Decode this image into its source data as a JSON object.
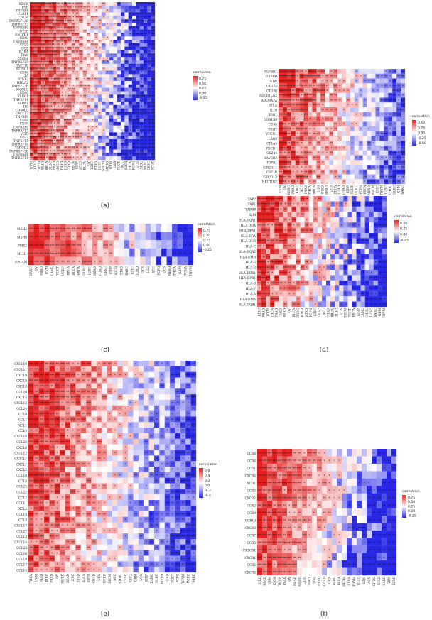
{
  "chart_data": [
    {
      "type": "heatmap",
      "panel_label": "(a)",
      "legend_title": "correlation",
      "legend_ticks": [
        "0.75",
        "0.50",
        "0.25",
        "0.00",
        "-0.25"
      ],
      "value_range": [
        -0.35,
        0.85
      ],
      "rows": [
        "KDCB",
        "PVR",
        "TNFSF4",
        "ULBP1",
        "CD276",
        "TNFRSF13C",
        "TNFRSF13",
        "TNFRSF8",
        "NT5E",
        "ENTPD1",
        "CD80",
        "TNFRSF4",
        "CD28",
        "ICOS",
        "IL2RA",
        "Tim6",
        "CXCR4",
        "TNFRSF25",
        "RAET1E",
        "STING1",
        "CD86",
        "LTA",
        "BTNL2",
        "HHLA2",
        "TNFSF13B",
        "ICOSLG",
        "CD40",
        "KLRC1",
        "TNFSF14",
        "KLRK1",
        "IL6",
        "CD40LG",
        "CXCL12",
        "TNFSF9",
        "CD48",
        "CD70",
        "TNFRSF9",
        "TNFRSF17",
        "VSIR",
        "CD27",
        "TNFSF15",
        "TNFRSF18",
        "TMIGD2",
        "TNFRSF13B",
        "TNFRSF4",
        "TNFRSF14"
      ],
      "cols": [
        "UVM",
        "KIRC",
        "THYM",
        "READ",
        "BRCA",
        "DLBC",
        "PRAD",
        "HNSC",
        "PAAD",
        "LUAD",
        "COAD",
        "ESCA",
        "KIRP",
        "UCEC",
        "BLCA",
        "OV",
        "LIHC",
        "STAD",
        "LUSC",
        "SKCM",
        "MESO",
        "GBM",
        "LGG",
        "TGCT",
        "ACC",
        "KICH",
        "THCA",
        "PCPG",
        "UCS",
        "CHOL",
        "SARC",
        "CESC",
        "TCGT"
      ]
    },
    {
      "type": "heatmap",
      "panel_label": "(b)",
      "legend_title": "correlation",
      "legend_ticks": [
        "0.50",
        "0.25",
        "0.00",
        "-0.25",
        "-0.50"
      ],
      "value_range": [
        -0.55,
        0.7
      ],
      "rows": [
        "TGFBR1",
        "IL10RB",
        "KDR",
        "CD274",
        "CD160",
        "PDCD1LG2",
        "ADORA2A",
        "BTLA",
        "IL10",
        "IDO1",
        "LGALS9",
        "CD96",
        "TIGIT",
        "VTCN1",
        "LAG3",
        "CTLA4",
        "PDCD1",
        "CD244",
        "HAVCR2",
        "TGFB1",
        "KIR2DL1",
        "CSF1R",
        "KIR2DL3",
        "NECTIN2"
      ],
      "cols": [
        "UVM",
        "OV",
        "HNSC",
        "PRAD",
        "KIRC",
        "ACC",
        "PAAD",
        "THCA",
        "BRCA",
        "LGG",
        "STAD",
        "READ",
        "UCS",
        "BLCA",
        "LUAD",
        "COAD",
        "KIRP",
        "TGCT",
        "UCEC",
        "PCPG",
        "ESCA",
        "MESO",
        "SKCM",
        "LIHC",
        "THYM",
        "LUSC",
        "CHOL",
        "DLBC",
        "GBM",
        "SARC"
      ]
    },
    {
      "type": "heatmap",
      "panel_label": "(c)",
      "legend_title": "correlation",
      "legend_ticks": [
        "0.75",
        "0.50",
        "0.25",
        "0.00",
        "-0.25"
      ],
      "value_range": [
        -0.35,
        0.85
      ],
      "rows": [
        "MSH2",
        "MSH6",
        "PMS2",
        "MLH1",
        "EPCAM"
      ],
      "cols": [
        "HNSC",
        "OV",
        "PRAD",
        "UVM",
        "LAML",
        "TGCT",
        "UCEC",
        "BRCA",
        "BLCA",
        "ESCA",
        "DLBC",
        "LUSC",
        "READ",
        "COAD",
        "CESC",
        "KIRP",
        "KICH",
        "STAD",
        "SARC",
        "LIHC",
        "LUAD",
        "UCS",
        "LGG",
        "ACC",
        "PCPG",
        "UCS",
        "MESO",
        "THCA",
        "GBM",
        "TCGA",
        "THYM"
      ]
    },
    {
      "type": "heatmap",
      "panel_label": "(d)",
      "legend_title": "correlation",
      "legend_ticks": [
        "0.50",
        "0.25",
        "0.00",
        "-0.25"
      ],
      "value_range": [
        -0.35,
        0.6
      ],
      "rows": [
        "TAP2",
        "TAP1",
        "TAPBP",
        "B2M",
        "HLA-DQA1",
        "HLA-DOA",
        "HLA-DPA1",
        "HLA-DRA",
        "HLA-DOB",
        "HLA-C",
        "HLA-DQA2",
        "HLA-DMB",
        "HLA-G",
        "HLA-E",
        "HLA-DRB1",
        "HLA-DPB1",
        "HLA-B",
        "HLA-F",
        "HLA-A",
        "HLA-DMA",
        "HLA-DQB1"
      ],
      "cols": [
        "KIRC",
        "PRAD",
        "UVM",
        "THCA",
        "PAAD",
        "LGG",
        "READ",
        "OV",
        "BLCA",
        "HNSC",
        "KICH",
        "STAD",
        "PCPG",
        "LIHC",
        "CESC",
        "ACC",
        "COAD",
        "BRCA",
        "DLBC",
        "UCS",
        "SKCM",
        "TGCT",
        "ESCA",
        "KIRP",
        "LAML",
        "CHOL",
        "LUSC",
        "SARC",
        "GBM",
        "THYM"
      ]
    },
    {
      "type": "heatmap",
      "panel_label": "(e)",
      "legend_title": "cor relation",
      "legend_ticks": [
        "0.6",
        "0.4",
        "0.2",
        "0.0",
        "-0.2",
        "-0.4"
      ],
      "value_range": [
        -0.5,
        0.7
      ],
      "rows": [
        "CXCL10",
        "CXCL11",
        "CXCL9",
        "CXCL8",
        "CXCL3",
        "CCL20",
        "CXCL5",
        "CXCL13",
        "CCL24",
        "CCL8",
        "CCL7",
        "XCL1",
        "CCL4",
        "CXCL16",
        "CCL28",
        "CXCL6",
        "CXCL12",
        "CX3CL1",
        "CXCL1",
        "CXCL2",
        "CCL18",
        "CCL5",
        "CCL25",
        "CCL22",
        "CCL2",
        "CCL11",
        "XCL2",
        "CCL15",
        "CCL3",
        "CXCL17",
        "CCL27",
        "CCL13",
        "CXCL14",
        "CCL23",
        "CCL16",
        "CCL19",
        "CCL17",
        "CCL14"
      ],
      "cols": [
        "THCA",
        "UVM",
        "PAAD",
        "KIRC",
        "PRAD",
        "OV",
        "HNSC",
        "READ",
        "LUSC",
        "STAD",
        "BLCA",
        "KICH",
        "COAD",
        "UCS",
        "UCEC",
        "SKCM",
        "ACC",
        "CHOL",
        "CESC",
        "ESCA",
        "GBM",
        "LGG",
        "KIRP",
        "LAML",
        "DLBC",
        "MESO",
        "LUAD",
        "TGCT",
        "PCPG",
        "THYM",
        "UCEC",
        "SARC"
      ]
    },
    {
      "type": "heatmap",
      "panel_label": "(f)",
      "legend_title": "correlation",
      "legend_ticks": [
        "0.75",
        "0.50",
        "0.25",
        "0.00",
        "-0.25"
      ],
      "value_range": [
        -0.35,
        0.85
      ],
      "rows": [
        "CCR8",
        "CCR4",
        "CCR1",
        "CXCR4",
        "XCR1",
        "CCR5",
        "CXCR2",
        "CCR2",
        "CCR9",
        "CCR10",
        "CXCR3",
        "CCR7",
        "CCR3",
        "CX3CR1",
        "CXCR1",
        "CCR6",
        "CXCR5"
      ],
      "cols": [
        "KIRC",
        "PRAD",
        "UVM",
        "KICH",
        "THCA",
        "PAAD",
        "OV",
        "READ",
        "HNSC",
        "LIHC",
        "TGCT",
        "LGG",
        "CESC",
        "COAD",
        "UCS",
        "PCPG",
        "BLCA",
        "SKCM",
        "BRCA",
        "THYM",
        "LUAD",
        "KIRP",
        "ACC",
        "CHOL",
        "STAD",
        "SARC",
        "GBM",
        "LUSC"
      ]
    }
  ]
}
